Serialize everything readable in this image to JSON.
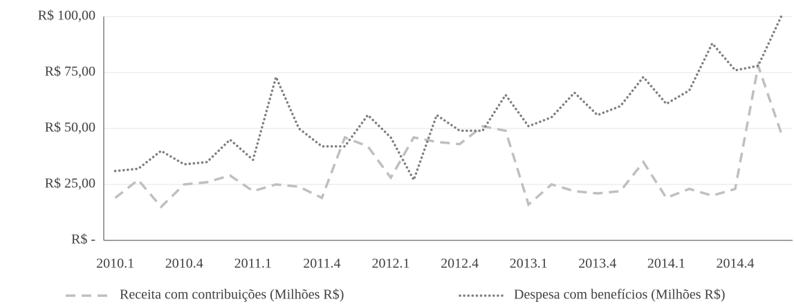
{
  "chart_data": {
    "type": "line",
    "categories": [
      "2010.1",
      null,
      null,
      "2010.4",
      null,
      null,
      "2011.1",
      null,
      null,
      "2011.4",
      null,
      null,
      "2012.1",
      null,
      null,
      "2012.4",
      null,
      null,
      "2013.1",
      null,
      null,
      "2013.4",
      null,
      null,
      "2014.1",
      null,
      null,
      "2014.4",
      null,
      null
    ],
    "series": [
      {
        "name": "Receita com contribuições (Milhões R$)",
        "color": "#bfbfbf",
        "style": "dashed",
        "values": [
          19,
          27,
          15,
          25,
          26,
          29,
          22,
          25,
          24,
          19,
          46,
          42,
          28,
          46,
          44,
          43,
          51,
          49,
          16,
          25,
          22,
          21,
          22,
          35,
          19,
          23,
          20,
          23,
          78,
          48
        ]
      },
      {
        "name": "Despesa com benefícios (Milhões R$)",
        "color": "#7f7f7f",
        "style": "dotted",
        "values": [
          31,
          32,
          40,
          34,
          35,
          45,
          36,
          73,
          50,
          42,
          42,
          56,
          46,
          27,
          56,
          49,
          49,
          65,
          51,
          55,
          66,
          56,
          60,
          73,
          61,
          67,
          88,
          76,
          78,
          100
        ]
      }
    ],
    "ylim": [
      0,
      100
    ],
    "yticks": [
      {
        "value": 0,
        "label": "R$ -"
      },
      {
        "value": 25,
        "label": "R$ 25,00"
      },
      {
        "value": 50,
        "label": "R$ 50,00"
      },
      {
        "value": 75,
        "label": "R$ 75,00"
      },
      {
        "value": 100,
        "label": "R$ 100,00"
      }
    ],
    "grid": true,
    "legend": "bottom"
  }
}
